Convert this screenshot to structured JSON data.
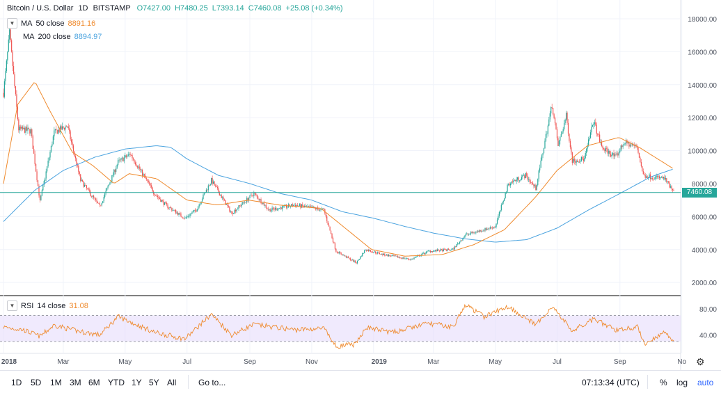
{
  "header": {
    "symbol": "Bitcoin / U.S. Dollar",
    "interval": "1D",
    "exchange": "BITSTAMP",
    "open": "O7427.00",
    "high": "H7480.25",
    "low": "L7393.14",
    "close": "C7460.08",
    "change": "+25.08 (+0.34%)"
  },
  "indicators": {
    "ma50": {
      "label": "MA",
      "params": "50 close",
      "value": "8891.16",
      "color": "#ef8a2d"
    },
    "ma200": {
      "label": "MA",
      "params": "200 close",
      "value": "8894.97",
      "color": "#4aa3df"
    },
    "rsi": {
      "label": "RSI",
      "params": "14 close",
      "value": "31.08",
      "color": "#ef8a2d"
    }
  },
  "price_tag": "7460.08",
  "price_axis": [
    "18000.00",
    "16000.00",
    "14000.00",
    "12000.00",
    "10000.00",
    "8000.00",
    "6000.00",
    "4000.00",
    "2000.00"
  ],
  "rsi_axis": [
    "80.00",
    "40.00"
  ],
  "time_axis": [
    "2018",
    "Mar",
    "May",
    "Jul",
    "Sep",
    "Nov",
    "2019",
    "Mar",
    "May",
    "Jul",
    "Sep",
    "No"
  ],
  "bottom_bar": {
    "ranges": [
      "1D",
      "5D",
      "1M",
      "3M",
      "6M",
      "YTD",
      "1Y",
      "5Y",
      "All"
    ],
    "goto": "Go to...",
    "clock": "07:13:34 (UTC)",
    "percent": "%",
    "log": "log",
    "auto": "auto"
  },
  "colors": {
    "up": "#26a69a",
    "down": "#ef5350",
    "rsi_band": "#e6dcfb"
  },
  "chart_data": {
    "type": "candlestick",
    "xlabel": "",
    "ylabel": "",
    "ylim": [
      1500,
      18800
    ],
    "rsi_ylim": [
      15,
      95
    ],
    "rsi_bands": [
      30,
      70
    ],
    "close_keypoints": [
      [
        "2018-01-01",
        13500
      ],
      [
        "2018-01-07",
        17100
      ],
      [
        "2018-01-16",
        11300
      ],
      [
        "2018-01-28",
        11200
      ],
      [
        "2018-02-06",
        6900
      ],
      [
        "2018-02-20",
        11100
      ],
      [
        "2018-03-05",
        11500
      ],
      [
        "2018-03-18",
        8200
      ],
      [
        "2018-04-06",
        6600
      ],
      [
        "2018-04-24",
        9300
      ],
      [
        "2018-05-06",
        9800
      ],
      [
        "2018-05-30",
        7400
      ],
      [
        "2018-06-10",
        6700
      ],
      [
        "2018-06-29",
        5900
      ],
      [
        "2018-07-10",
        6400
      ],
      [
        "2018-07-25",
        8200
      ],
      [
        "2018-08-14",
        6200
      ],
      [
        "2018-09-05",
        7400
      ],
      [
        "2018-09-20",
        6400
      ],
      [
        "2018-10-15",
        6700
      ],
      [
        "2018-11-13",
        6400
      ],
      [
        "2018-11-25",
        3900
      ],
      [
        "2018-12-15",
        3200
      ],
      [
        "2018-12-24",
        4000
      ],
      [
        "2019-01-10",
        3700
      ],
      [
        "2019-02-07",
        3400
      ],
      [
        "2019-02-24",
        3900
      ],
      [
        "2019-03-20",
        4000
      ],
      [
        "2019-04-02",
        4900
      ],
      [
        "2019-05-01",
        5400
      ],
      [
        "2019-05-14",
        8000
      ],
      [
        "2019-05-31",
        8500
      ],
      [
        "2019-06-10",
        7700
      ],
      [
        "2019-06-26",
        12800
      ],
      [
        "2019-07-02",
        10300
      ],
      [
        "2019-07-10",
        12100
      ],
      [
        "2019-07-16",
        9400
      ],
      [
        "2019-07-28",
        9500
      ],
      [
        "2019-08-06",
        11800
      ],
      [
        "2019-08-14",
        10200
      ],
      [
        "2019-08-28",
        9600
      ],
      [
        "2019-09-05",
        10500
      ],
      [
        "2019-09-18",
        10200
      ],
      [
        "2019-09-24",
        8500
      ],
      [
        "2019-10-15",
        8300
      ],
      [
        "2019-10-24",
        7460
      ]
    ],
    "ma50_keypoints": [
      [
        "2018-01-01",
        8000
      ],
      [
        "2018-01-15",
        12800
      ],
      [
        "2018-02-01",
        14200
      ],
      [
        "2018-02-15",
        12500
      ],
      [
        "2018-03-10",
        9900
      ],
      [
        "2018-03-30",
        9100
      ],
      [
        "2018-04-20",
        8000
      ],
      [
        "2018-05-05",
        8600
      ],
      [
        "2018-06-01",
        8300
      ],
      [
        "2018-07-01",
        7000
      ],
      [
        "2018-07-31",
        6700
      ],
      [
        "2018-08-31",
        7000
      ],
      [
        "2018-09-30",
        6700
      ],
      [
        "2018-11-10",
        6500
      ],
      [
        "2018-12-06",
        5200
      ],
      [
        "2018-12-30",
        4000
      ],
      [
        "2019-02-01",
        3600
      ],
      [
        "2019-03-10",
        3700
      ],
      [
        "2019-04-10",
        4300
      ],
      [
        "2019-05-10",
        5200
      ],
      [
        "2019-06-10",
        7200
      ],
      [
        "2019-07-01",
        8800
      ],
      [
        "2019-07-31",
        10300
      ],
      [
        "2019-08-31",
        10800
      ],
      [
        "2019-09-20",
        10200
      ],
      [
        "2019-10-24",
        8890
      ]
    ],
    "ma200_keypoints": [
      [
        "2018-01-01",
        5700
      ],
      [
        "2018-02-01",
        7600
      ],
      [
        "2018-03-01",
        8800
      ],
      [
        "2018-04-01",
        9600
      ],
      [
        "2018-05-01",
        10100
      ],
      [
        "2018-06-01",
        10300
      ],
      [
        "2018-06-15",
        10200
      ],
      [
        "2018-07-01",
        9500
      ],
      [
        "2018-08-01",
        8500
      ],
      [
        "2018-09-01",
        8000
      ],
      [
        "2018-10-01",
        7400
      ],
      [
        "2018-11-01",
        7000
      ],
      [
        "2018-12-01",
        6300
      ],
      [
        "2019-01-01",
        5900
      ],
      [
        "2019-02-01",
        5400
      ],
      [
        "2019-03-01",
        5000
      ],
      [
        "2019-04-01",
        4650
      ],
      [
        "2019-05-01",
        4450
      ],
      [
        "2019-06-01",
        4600
      ],
      [
        "2019-07-01",
        5300
      ],
      [
        "2019-08-01",
        6400
      ],
      [
        "2019-09-01",
        7400
      ],
      [
        "2019-10-01",
        8400
      ],
      [
        "2019-10-24",
        8890
      ]
    ],
    "rsi_keypoints": [
      [
        "2018-01-01",
        52
      ],
      [
        "2018-01-20",
        48
      ],
      [
        "2018-02-06",
        38
      ],
      [
        "2018-02-20",
        55
      ],
      [
        "2018-03-15",
        46
      ],
      [
        "2018-04-06",
        40
      ],
      [
        "2018-04-24",
        68
      ],
      [
        "2018-05-30",
        44
      ],
      [
        "2018-06-29",
        34
      ],
      [
        "2018-07-25",
        72
      ],
      [
        "2018-08-14",
        40
      ],
      [
        "2018-09-05",
        56
      ],
      [
        "2018-10-15",
        48
      ],
      [
        "2018-11-13",
        50
      ],
      [
        "2018-11-25",
        22
      ],
      [
        "2018-12-15",
        26
      ],
      [
        "2018-12-24",
        52
      ],
      [
        "2019-01-20",
        44
      ],
      [
        "2019-02-24",
        58
      ],
      [
        "2019-03-20",
        52
      ],
      [
        "2019-04-02",
        86
      ],
      [
        "2019-04-20",
        68
      ],
      [
        "2019-05-14",
        84
      ],
      [
        "2019-06-10",
        55
      ],
      [
        "2019-06-26",
        84
      ],
      [
        "2019-07-16",
        46
      ],
      [
        "2019-08-06",
        64
      ],
      [
        "2019-08-28",
        48
      ],
      [
        "2019-09-18",
        52
      ],
      [
        "2019-09-26",
        26
      ],
      [
        "2019-10-05",
        36
      ],
      [
        "2019-10-15",
        44
      ],
      [
        "2019-10-24",
        31
      ]
    ]
  }
}
